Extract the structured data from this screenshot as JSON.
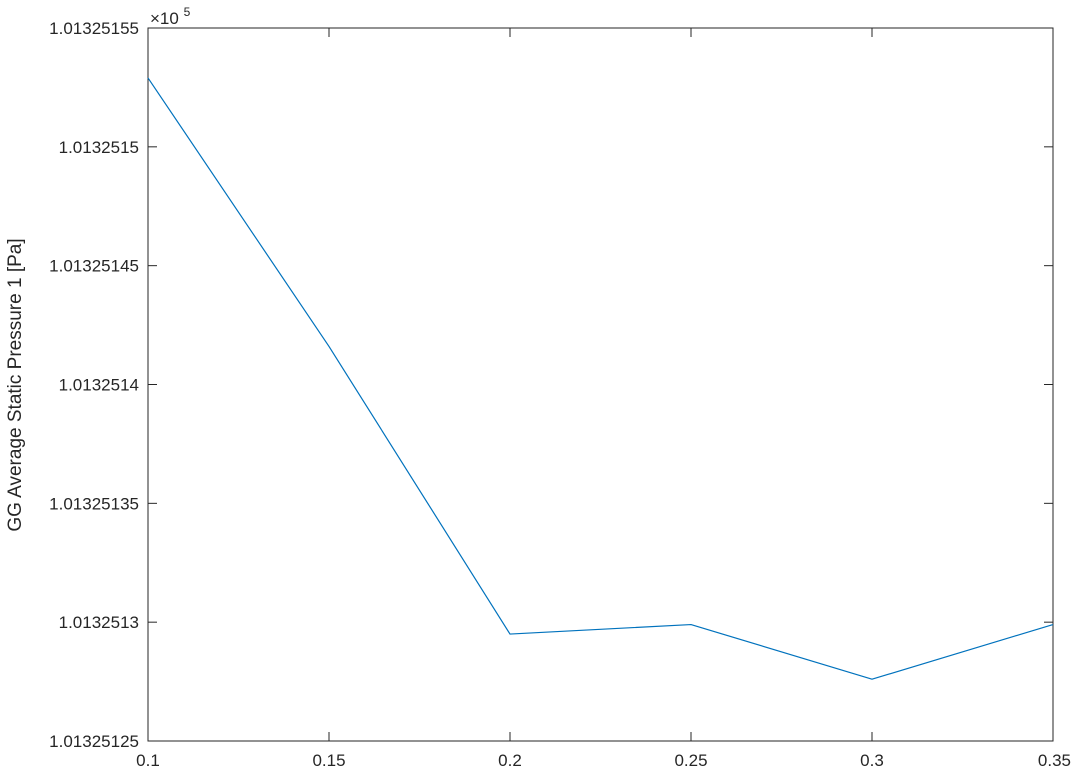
{
  "chart_data": {
    "type": "line",
    "title": "",
    "xlabel": "",
    "ylabel": "GG Average Static Pressure 1 [Pa]",
    "y_exponent_label": "×10",
    "y_exponent_power": "5",
    "xlim": [
      0.1,
      0.35
    ],
    "ylim": [
      1.01325125,
      1.01325155
    ],
    "x_ticks": [
      0.1,
      0.15,
      0.2,
      0.25,
      0.3,
      0.35
    ],
    "x_tick_labels": [
      "0.1",
      "0.15",
      "0.2",
      "0.25",
      "0.3",
      "0.35"
    ],
    "y_ticks": [
      1.01325125,
      1.0132513,
      1.01325135,
      1.0132514,
      1.01325145,
      1.0132515,
      1.01325155
    ],
    "y_tick_labels": [
      "1.01325125",
      "1.0132513",
      "1.01325135",
      "1.0132514",
      "1.01325145",
      "1.0132515",
      "1.01325155"
    ],
    "grid": false,
    "box": true,
    "series": [
      {
        "color": "#0072BD",
        "x": [
          0.1,
          0.15,
          0.2,
          0.25,
          0.3,
          0.35
        ],
        "y": [
          1.013251529,
          1.013251416,
          1.013251295,
          1.013251299,
          1.013251276,
          1.013251299
        ]
      }
    ]
  }
}
